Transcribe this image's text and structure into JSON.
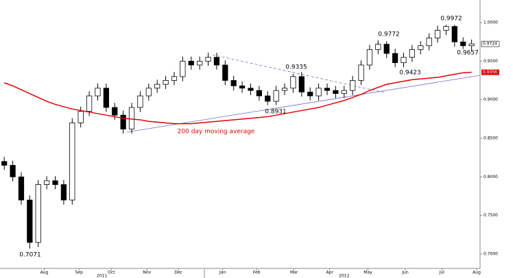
{
  "chart_data": {
    "type": "candlestick",
    "x": [
      0,
      1,
      2,
      3,
      4,
      5,
      6,
      7,
      8,
      9,
      10,
      11,
      12,
      13,
      14,
      15,
      16,
      17,
      18,
      19,
      20,
      21,
      22,
      23,
      24,
      25,
      26,
      27,
      28,
      29,
      30,
      31,
      32,
      33,
      34,
      35,
      36,
      37,
      38,
      39,
      40,
      41,
      42,
      43,
      44,
      45,
      46,
      47,
      48,
      49,
      50,
      51,
      52,
      53,
      54,
      55
    ],
    "open": [
      0.82,
      0.815,
      0.8,
      0.77,
      0.715,
      0.79,
      0.795,
      0.79,
      0.77,
      0.87,
      0.885,
      0.905,
      0.915,
      0.89,
      0.88,
      0.862,
      0.89,
      0.905,
      0.915,
      0.92,
      0.925,
      0.93,
      0.95,
      0.945,
      0.95,
      0.955,
      0.945,
      0.925,
      0.918,
      0.915,
      0.912,
      0.905,
      0.898,
      0.912,
      0.915,
      0.93,
      0.91,
      0.905,
      0.915,
      0.912,
      0.908,
      0.912,
      0.925,
      0.945,
      0.965,
      0.972,
      0.96,
      0.948,
      0.955,
      0.965,
      0.97,
      0.98,
      0.99,
      0.995,
      0.975,
      0.97
    ],
    "high": [
      0.826,
      0.821,
      0.806,
      0.776,
      0.796,
      0.801,
      0.801,
      0.796,
      0.876,
      0.891,
      0.911,
      0.921,
      0.921,
      0.896,
      0.886,
      0.896,
      0.911,
      0.921,
      0.926,
      0.931,
      0.936,
      0.956,
      0.956,
      0.956,
      0.961,
      0.961,
      0.951,
      0.931,
      0.924,
      0.921,
      0.918,
      0.911,
      0.918,
      0.921,
      0.9335,
      0.936,
      0.916,
      0.921,
      0.921,
      0.918,
      0.918,
      0.931,
      0.951,
      0.971,
      0.9772,
      0.976,
      0.966,
      0.961,
      0.971,
      0.976,
      0.986,
      0.996,
      0.9972,
      0.997,
      0.981,
      0.978
    ],
    "low": [
      0.809,
      0.794,
      0.764,
      0.7071,
      0.709,
      0.784,
      0.784,
      0.764,
      0.764,
      0.864,
      0.879,
      0.899,
      0.884,
      0.874,
      0.856,
      0.856,
      0.884,
      0.899,
      0.909,
      0.914,
      0.919,
      0.924,
      0.939,
      0.939,
      0.944,
      0.939,
      0.919,
      0.912,
      0.909,
      0.906,
      0.899,
      0.8931,
      0.893,
      0.906,
      0.909,
      0.904,
      0.899,
      0.899,
      0.906,
      0.902,
      0.902,
      0.906,
      0.919,
      0.939,
      0.959,
      0.954,
      0.9423,
      0.942,
      0.949,
      0.959,
      0.964,
      0.974,
      0.984,
      0.969,
      0.9657,
      0.964
    ],
    "close": [
      0.815,
      0.8,
      0.77,
      0.715,
      0.79,
      0.795,
      0.79,
      0.77,
      0.87,
      0.885,
      0.905,
      0.915,
      0.89,
      0.88,
      0.862,
      0.89,
      0.905,
      0.915,
      0.92,
      0.925,
      0.93,
      0.95,
      0.945,
      0.95,
      0.955,
      0.945,
      0.925,
      0.918,
      0.915,
      0.912,
      0.905,
      0.898,
      0.912,
      0.915,
      0.93,
      0.91,
      0.905,
      0.915,
      0.912,
      0.908,
      0.912,
      0.925,
      0.945,
      0.965,
      0.972,
      0.96,
      0.948,
      0.955,
      0.965,
      0.97,
      0.98,
      0.99,
      0.995,
      0.975,
      0.97,
      0.9724
    ],
    "up_color": "#ffffff",
    "down_color": "#000000",
    "series": [
      {
        "name": "200 day moving average",
        "color": "#e00000",
        "values": [
          0.922,
          0.918,
          0.913,
          0.908,
          0.903,
          0.898,
          0.894,
          0.891,
          0.888,
          0.886,
          0.884,
          0.882,
          0.88,
          0.878,
          0.876,
          0.875,
          0.874,
          0.872,
          0.871,
          0.87,
          0.869,
          0.869,
          0.869,
          0.87,
          0.871,
          0.872,
          0.873,
          0.874,
          0.875,
          0.876,
          0.877,
          0.878,
          0.88,
          0.882,
          0.884,
          0.886,
          0.888,
          0.89,
          0.893,
          0.896,
          0.899,
          0.903,
          0.907,
          0.912,
          0.916,
          0.92,
          0.922,
          0.924,
          0.926,
          0.927,
          0.928,
          0.929,
          0.931,
          0.933,
          0.935,
          0.9356
        ]
      }
    ],
    "annotations": [
      "0.7071",
      "0.8931",
      "0.9335",
      "0.9423",
      "0.9657",
      "0.9772",
      "0.9972"
    ],
    "xlim": [
      -0.5,
      56
    ],
    "ylim": [
      0.676,
      1.0293
    ],
    "yticks": [
      {
        "value": 0.7,
        "label": "0.7000"
      },
      {
        "value": 0.75,
        "label": "0.7500"
      },
      {
        "value": 0.8,
        "label": "0.8000"
      },
      {
        "value": 0.85,
        "label": "0.8500"
      },
      {
        "value": 0.9,
        "label": "0.9000"
      },
      {
        "value": 0.95,
        "label": "0.9500"
      },
      {
        "value": 1.0,
        "label": "1.0000"
      }
    ],
    "xticks": [
      {
        "value": 4.7,
        "label": "Aug"
      },
      {
        "value": 8.8,
        "label": "Sep"
      },
      {
        "value": 12.6,
        "label": "Oct"
      },
      {
        "value": 16.8,
        "label": "Nov"
      },
      {
        "value": 20.5,
        "label": "Dec"
      },
      {
        "value": 25.7,
        "label": "Jan"
      },
      {
        "value": 29.7,
        "label": "Feb"
      },
      {
        "value": 34.1,
        "label": "Mar"
      },
      {
        "value": 38.3,
        "label": "Apr"
      },
      {
        "value": 42.8,
        "label": "May"
      },
      {
        "value": 47.2,
        "label": "Jun"
      },
      {
        "value": 51.5,
        "label": "Jul"
      },
      {
        "value": 55.6,
        "label": "Aug"
      }
    ],
    "year_labels": [
      {
        "value": 11.5,
        "label": "2011"
      },
      {
        "value": 40,
        "label": "2012"
      }
    ]
  }
}
